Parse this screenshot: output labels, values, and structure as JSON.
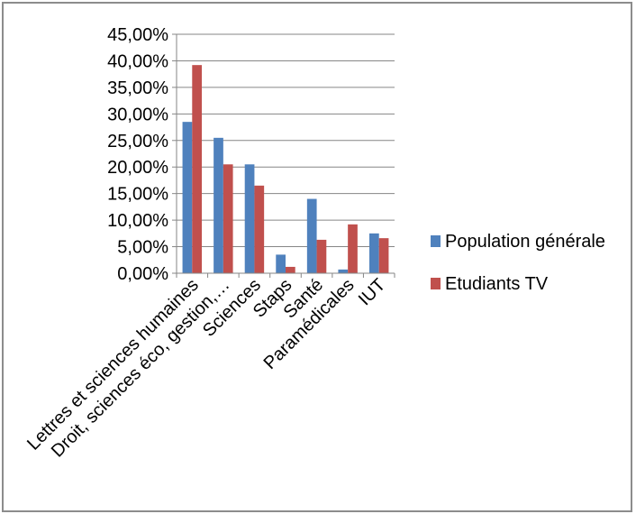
{
  "chart_data": {
    "type": "bar",
    "categories": [
      "Lettres et sciences humaines",
      "Droit, sciences éco, gestion,…",
      "Sciences",
      "Staps",
      "Santé",
      "Paramédicales",
      "IUT"
    ],
    "series": [
      {
        "name": "Population générale",
        "color": "#4f81bd",
        "values": [
          28.5,
          25.5,
          20.5,
          3.5,
          14.0,
          0.7,
          7.5
        ]
      },
      {
        "name": "Etudiants TV",
        "color": "#c0504d",
        "values": [
          39.2,
          20.5,
          16.5,
          1.2,
          6.3,
          9.2,
          6.6
        ]
      }
    ],
    "ylim": [
      0,
      45
    ],
    "yticks": [
      "0,00%",
      "5,00%",
      "10,00%",
      "15,00%",
      "20,00%",
      "25,00%",
      "30,00%",
      "35,00%",
      "40,00%",
      "45,00%"
    ],
    "grid": true,
    "legend_position": "right"
  }
}
